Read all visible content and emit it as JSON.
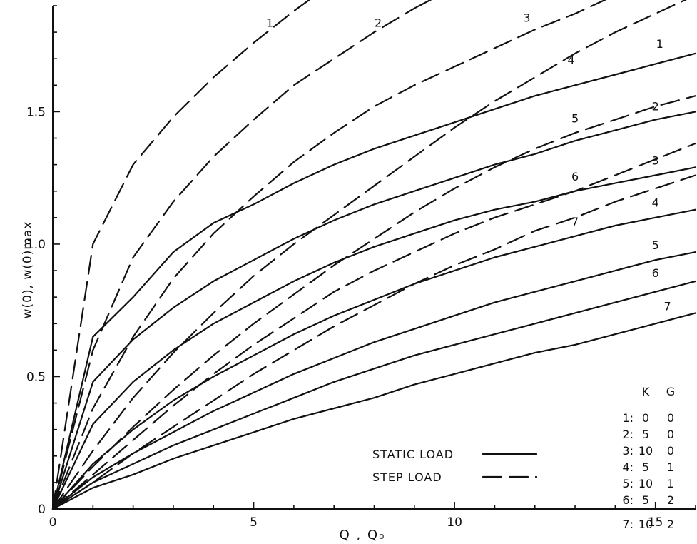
{
  "chart_data": {
    "type": "line",
    "title": "",
    "xlabel": "Q , Q₀",
    "ylabel": "w(0), w(0)max",
    "xlim": [
      0,
      16
    ],
    "ylim": [
      0,
      1.9
    ],
    "xticks": [
      0,
      5,
      10,
      15
    ],
    "xtick_labels": [
      "0",
      "5",
      "10",
      "15"
    ],
    "yticks": [
      0,
      0.5,
      1.0,
      1.5
    ],
    "ytick_labels": [
      "0",
      "0.5",
      "1.0",
      "1.5"
    ],
    "grid": false,
    "legend": {
      "position": "bottom-right",
      "entries": [
        {
          "label": "STATIC LOAD",
          "style": "solid"
        },
        {
          "label": "STEP LOAD",
          "style": "dashed"
        }
      ]
    },
    "parameter_table": {
      "headers": [
        "K",
        "G"
      ],
      "rows": [
        {
          "id": "1:",
          "K": "0",
          "G": "0"
        },
        {
          "id": "2:",
          "K": "5",
          "G": "0"
        },
        {
          "id": "3:",
          "K": "10",
          "G": "0"
        },
        {
          "id": "4:",
          "K": "5",
          "G": "1"
        },
        {
          "id": "5:",
          "K": "10",
          "G": "1"
        },
        {
          "id": "6:",
          "K": "5",
          "G": "2"
        },
        {
          "id": "7:",
          "K": "10",
          "G": "2"
        }
      ]
    },
    "x": [
      0,
      1,
      2,
      3,
      4,
      5,
      6,
      7,
      8,
      9,
      10,
      11,
      12,
      13,
      14,
      15,
      16
    ],
    "series": [
      {
        "name": "1",
        "style": "solid",
        "label": "1",
        "values": [
          0,
          0.65,
          0.8,
          0.97,
          1.08,
          1.15,
          1.23,
          1.3,
          1.36,
          1.41,
          1.46,
          1.51,
          1.56,
          1.6,
          1.64,
          1.68,
          1.72
        ]
      },
      {
        "name": "2",
        "style": "solid",
        "label": "2",
        "values": [
          0,
          0.48,
          0.64,
          0.76,
          0.86,
          0.94,
          1.02,
          1.09,
          1.15,
          1.2,
          1.25,
          1.3,
          1.34,
          1.39,
          1.43,
          1.47,
          1.5
        ]
      },
      {
        "name": "3",
        "style": "solid",
        "label": "3",
        "values": [
          0,
          0.32,
          0.48,
          0.6,
          0.7,
          0.78,
          0.86,
          0.93,
          0.99,
          1.04,
          1.09,
          1.13,
          1.16,
          1.2,
          1.23,
          1.26,
          1.29
        ]
      },
      {
        "name": "4",
        "style": "solid",
        "label": "4",
        "values": [
          0,
          0.17,
          0.3,
          0.41,
          0.5,
          0.58,
          0.66,
          0.73,
          0.79,
          0.85,
          0.9,
          0.95,
          0.99,
          1.03,
          1.07,
          1.1,
          1.13
        ]
      },
      {
        "name": "5",
        "style": "solid",
        "label": "5",
        "values": [
          0,
          0.12,
          0.21,
          0.29,
          0.37,
          0.44,
          0.51,
          0.57,
          0.63,
          0.68,
          0.73,
          0.78,
          0.82,
          0.86,
          0.9,
          0.94,
          0.97
        ]
      },
      {
        "name": "6",
        "style": "solid",
        "label": "6",
        "values": [
          0,
          0.1,
          0.17,
          0.24,
          0.3,
          0.36,
          0.42,
          0.48,
          0.53,
          0.58,
          0.62,
          0.66,
          0.7,
          0.74,
          0.78,
          0.82,
          0.86
        ]
      },
      {
        "name": "7",
        "style": "solid",
        "label": "7",
        "values": [
          0,
          0.08,
          0.13,
          0.19,
          0.24,
          0.29,
          0.34,
          0.38,
          0.42,
          0.47,
          0.51,
          0.55,
          0.59,
          0.62,
          0.66,
          0.7,
          0.74
        ]
      },
      {
        "name": "1",
        "style": "dashed",
        "label": "1",
        "values": [
          0,
          1.0,
          1.3,
          1.48,
          1.63,
          1.76,
          1.88,
          1.99,
          null,
          null,
          null,
          null,
          null,
          null,
          null,
          null,
          null
        ]
      },
      {
        "name": "2",
        "style": "dashed",
        "label": "2",
        "values": [
          0,
          0.6,
          0.95,
          1.16,
          1.33,
          1.47,
          1.6,
          1.7,
          1.8,
          1.89,
          1.97,
          null,
          null,
          null,
          null,
          null,
          null
        ]
      },
      {
        "name": "3",
        "style": "dashed",
        "label": "3",
        "values": [
          0,
          0.38,
          0.65,
          0.87,
          1.04,
          1.18,
          1.31,
          1.42,
          1.52,
          1.6,
          1.67,
          1.74,
          1.81,
          1.87,
          1.94,
          null,
          null
        ]
      },
      {
        "name": "4",
        "style": "dashed",
        "label": "4",
        "values": [
          0,
          0.22,
          0.42,
          0.59,
          0.74,
          0.88,
          1.0,
          1.11,
          1.22,
          1.33,
          1.44,
          1.54,
          1.63,
          1.72,
          1.8,
          1.87,
          1.94
        ]
      },
      {
        "name": "5",
        "style": "dashed",
        "label": "5",
        "values": [
          0,
          0.16,
          0.31,
          0.45,
          0.58,
          0.7,
          0.81,
          0.92,
          1.02,
          1.12,
          1.21,
          1.29,
          1.36,
          1.42,
          1.47,
          1.52,
          1.56
        ]
      },
      {
        "name": "6",
        "style": "dashed",
        "label": "6",
        "values": [
          0,
          0.13,
          0.26,
          0.39,
          0.51,
          0.62,
          0.72,
          0.82,
          0.9,
          0.97,
          1.04,
          1.1,
          1.15,
          1.2,
          1.26,
          1.32,
          1.38
        ]
      },
      {
        "name": "7",
        "style": "dashed",
        "label": "7",
        "values": [
          0,
          0.1,
          0.21,
          0.31,
          0.41,
          0.51,
          0.6,
          0.69,
          0.77,
          0.85,
          0.92,
          0.98,
          1.05,
          1.1,
          1.16,
          1.21,
          1.26
        ]
      }
    ]
  }
}
